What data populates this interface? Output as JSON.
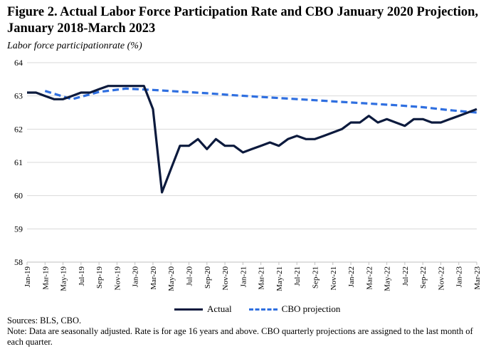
{
  "header": {
    "title": "Figure 2. Actual Labor Force Participation Rate and CBO January 2020 Projection, January 2018-March 2023",
    "ylabel": "Labor force participationrate (%)"
  },
  "legend": {
    "actual": "Actual",
    "cbo": "CBO projection"
  },
  "notes": {
    "sources": "Sources: BLS, CBO.",
    "note": "Note: Data are seasonally adjusted. Rate is for age 16 years and above. CBO quarterly projections are assigned to the last month of each quarter."
  },
  "colors": {
    "actual": "#0c1a3d",
    "cbo": "#2f6fe0",
    "grid": "#d9d9d9",
    "axis": "#bfbfbf"
  },
  "chart_data": {
    "type": "line",
    "title": "Figure 2. Actual Labor Force Participation Rate and CBO January 2020 Projection, January 2018-March 2023",
    "ylabel": "Labor force participationrate (%)",
    "xlabel": "",
    "ylim": [
      58,
      64
    ],
    "yticks": [
      "58",
      "59",
      "60",
      "61",
      "62",
      "63",
      "64"
    ],
    "grid": true,
    "legend_position": "bottom",
    "x_tick_labels": [
      "Jan-19",
      "Mar-19",
      "May-19",
      "Jul-19",
      "Sep-19",
      "Nov-19",
      "Jan-20",
      "Mar-20",
      "May-20",
      "Jul-20",
      "Sep-20",
      "Nov-20",
      "Jan-21",
      "Mar-21",
      "May-21",
      "Jul-21",
      "Sep-21",
      "Nov-21",
      "Jan-22",
      "Mar-22",
      "May-22",
      "Jul-22",
      "Sep-22",
      "Nov-22",
      "Jan-23",
      "Mar-23"
    ],
    "series": [
      {
        "name": "Actual",
        "style": "solid",
        "values": [
          63.1,
          63.1,
          63.0,
          62.9,
          62.9,
          63.0,
          63.1,
          63.1,
          63.2,
          63.3,
          63.3,
          63.3,
          63.3,
          63.3,
          62.6,
          60.1,
          60.8,
          61.5,
          61.5,
          61.7,
          61.4,
          61.7,
          61.5,
          61.5,
          61.3,
          61.4,
          61.5,
          61.6,
          61.5,
          61.7,
          61.8,
          61.7,
          61.7,
          61.8,
          61.9,
          62.0,
          62.2,
          62.2,
          62.4,
          62.2,
          62.3,
          62.2,
          62.1,
          62.3,
          62.3,
          62.2,
          62.2,
          62.3,
          62.4,
          62.5,
          62.6
        ]
      },
      {
        "name": "CBO projection",
        "style": "dashed",
        "x_index": [
          2,
          5,
          8,
          11,
          14,
          17,
          20,
          23,
          26,
          29,
          32,
          35,
          38,
          41,
          44,
          47,
          50
        ],
        "values": [
          63.15,
          62.9,
          63.12,
          63.22,
          63.18,
          63.13,
          63.08,
          63.02,
          62.97,
          62.92,
          62.87,
          62.82,
          62.77,
          62.72,
          62.66,
          62.57,
          62.5
        ]
      }
    ]
  }
}
